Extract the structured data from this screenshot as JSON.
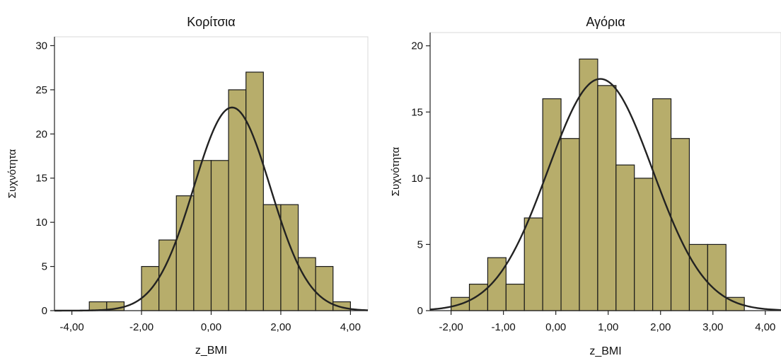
{
  "chart_data": [
    {
      "type": "bar",
      "title": "Κορίτσια",
      "xlabel": "z_BMI",
      "ylabel": "Συχνότητα",
      "xlim": [
        -4.5,
        4.5
      ],
      "ylim": [
        0,
        31
      ],
      "xticks": [
        -4,
        -2,
        0,
        2,
        4
      ],
      "xtick_labels": [
        "-4,00",
        "-2,00",
        "0,00",
        "2,00",
        "4,00"
      ],
      "yticks": [
        0,
        5,
        10,
        15,
        20,
        25,
        30
      ],
      "ytick_labels": [
        "0",
        "5",
        "10",
        "15",
        "20",
        "25",
        "30"
      ],
      "grid": false,
      "bin_edges": [
        -3.5,
        -3.0,
        -2.5,
        -2.0,
        -1.5,
        -1.0,
        -0.5,
        0.0,
        0.5,
        1.0,
        1.5,
        2.0,
        2.5,
        3.0,
        3.5,
        4.0
      ],
      "values": [
        1,
        1,
        0,
        5,
        8,
        13,
        17,
        17,
        25,
        27,
        12,
        12,
        6,
        5,
        1
      ],
      "normal_curve": {
        "mean": 0.6,
        "sd": 1.1,
        "peak": 23.0
      }
    },
    {
      "type": "bar",
      "title": "Αγόρια",
      "xlabel": "z_BMI",
      "ylabel": "Συχνότητα",
      "xlim": [
        -2.4,
        4.3
      ],
      "ylim": [
        0,
        21
      ],
      "xticks": [
        -2,
        -1,
        0,
        1,
        2,
        3,
        4
      ],
      "xtick_labels": [
        "-2,00",
        "-1,00",
        "0,00",
        "1,00",
        "2,00",
        "3,00",
        "4,00"
      ],
      "yticks": [
        0,
        5,
        10,
        15,
        20
      ],
      "ytick_labels": [
        "0",
        "5",
        "10",
        "15",
        "20"
      ],
      "grid": false,
      "bin_edges": [
        -2.0,
        -1.65,
        -1.3,
        -0.95,
        -0.6,
        -0.25,
        0.1,
        0.45,
        0.8,
        1.15,
        1.5,
        1.85,
        2.2,
        2.55,
        2.9,
        3.25,
        3.6
      ],
      "values": [
        1,
        2,
        4,
        2,
        7,
        16,
        13,
        19,
        17,
        11,
        10,
        16,
        13,
        5,
        5,
        1
      ],
      "normal_curve": {
        "mean": 0.85,
        "sd": 1.0,
        "peak": 17.5
      }
    }
  ]
}
